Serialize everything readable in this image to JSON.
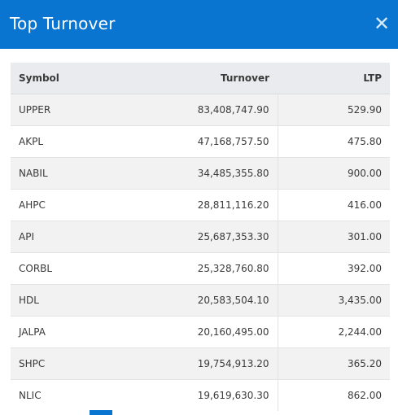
{
  "modal": {
    "title": "Top Turnover",
    "close_glyph": "✕",
    "close_icon": "close-icon",
    "accent_color": "#0a75d1"
  },
  "table": {
    "headers": {
      "symbol": "Symbol",
      "turnover": "Turnover",
      "ltp": "LTP"
    },
    "rows": [
      {
        "symbol": "UPPER",
        "turnover": "83,408,747.90",
        "ltp": "529.90"
      },
      {
        "symbol": "AKPL",
        "turnover": "47,168,757.50",
        "ltp": "475.80"
      },
      {
        "symbol": "NABIL",
        "turnover": "34,485,355.80",
        "ltp": "900.00"
      },
      {
        "symbol": "AHPC",
        "turnover": "28,811,116.20",
        "ltp": "416.00"
      },
      {
        "symbol": "API",
        "turnover": "25,687,353.30",
        "ltp": "301.00"
      },
      {
        "symbol": "CORBL",
        "turnover": "25,328,760.80",
        "ltp": "392.00"
      },
      {
        "symbol": "HDL",
        "turnover": "20,583,504.10",
        "ltp": "3,435.00"
      },
      {
        "symbol": "JALPA",
        "turnover": "20,160,495.00",
        "ltp": "2,244.00"
      },
      {
        "symbol": "SHPC",
        "turnover": "19,754,913.20",
        "ltp": "365.20"
      },
      {
        "symbol": "NLIC",
        "turnover": "19,619,630.30",
        "ltp": "862.00"
      }
    ]
  }
}
